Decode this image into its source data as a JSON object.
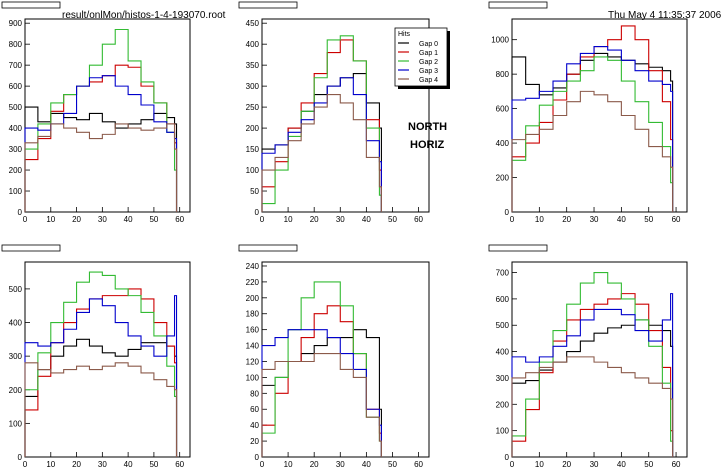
{
  "header": {
    "file": "result/onlMon/histos-1-4-193070.root",
    "timestamp": "Thu May  4 11:35:37 2006"
  },
  "annotations": {
    "north": "NORTH",
    "horiz": "HORIZ"
  },
  "legend": {
    "title": "Hits",
    "entries": [
      "Gap 0",
      "Gap 1",
      "Gap 2",
      "Gap 3",
      "Gap 4"
    ]
  },
  "colors": {
    "gap0": "#000000",
    "gap1": "#cc0000",
    "gap2": "#33bb33",
    "gap3": "#0000cc",
    "gap4": "#8b5a4a"
  },
  "chart_data": [
    {
      "type": "line",
      "panel": "top-left",
      "xticks": [
        0,
        10,
        20,
        30,
        40,
        50,
        60
      ],
      "ylim": [
        0,
        920
      ],
      "yticks": [
        0,
        100,
        200,
        300,
        400,
        500,
        600,
        700,
        800,
        900
      ],
      "series": [
        {
          "color": "#000000",
          "x": [
            0,
            5,
            10,
            15,
            20,
            25,
            30,
            35,
            40,
            45,
            50,
            55,
            58
          ],
          "y": [
            500,
            430,
            470,
            450,
            440,
            470,
            430,
            400,
            420,
            440,
            470,
            450,
            420
          ]
        },
        {
          "color": "#cc0000",
          "x": [
            0,
            5,
            10,
            15,
            20,
            25,
            30,
            35,
            40,
            45,
            50,
            55,
            58
          ],
          "y": [
            250,
            350,
            480,
            560,
            600,
            620,
            650,
            700,
            690,
            600,
            520,
            420,
            330
          ]
        },
        {
          "color": "#33bb33",
          "x": [
            0,
            5,
            10,
            15,
            20,
            25,
            30,
            35,
            40,
            45,
            50,
            55,
            58
          ],
          "y": [
            300,
            420,
            520,
            560,
            600,
            700,
            800,
            870,
            720,
            620,
            520,
            380,
            200
          ]
        },
        {
          "color": "#0000cc",
          "x": [
            0,
            5,
            10,
            15,
            20,
            25,
            30,
            35,
            40,
            45,
            50,
            55,
            58
          ],
          "y": [
            400,
            390,
            420,
            470,
            600,
            640,
            650,
            600,
            560,
            510,
            430,
            380,
            350
          ]
        },
        {
          "color": "#8b5a4a",
          "x": [
            0,
            5,
            10,
            15,
            20,
            25,
            30,
            35,
            40,
            45,
            50,
            55,
            58
          ],
          "y": [
            330,
            360,
            420,
            400,
            380,
            350,
            370,
            420,
            400,
            390,
            400,
            420,
            300
          ]
        }
      ]
    },
    {
      "type": "line",
      "panel": "top-middle",
      "xticks": [
        0,
        10,
        20,
        30,
        40,
        50,
        60
      ],
      "ylim": [
        0,
        460
      ],
      "yticks": [
        0,
        50,
        100,
        150,
        200,
        250,
        300,
        350,
        400,
        450
      ],
      "series": [
        {
          "color": "#000000",
          "x": [
            0,
            5,
            10,
            15,
            20,
            25,
            30,
            35,
            40,
            45
          ],
          "y": [
            150,
            160,
            200,
            240,
            280,
            300,
            320,
            330,
            260,
            200
          ]
        },
        {
          "color": "#cc0000",
          "x": [
            0,
            5,
            10,
            15,
            20,
            25,
            30,
            35,
            40,
            45
          ],
          "y": [
            60,
            120,
            200,
            260,
            330,
            380,
            410,
            360,
            220,
            100
          ]
        },
        {
          "color": "#33bb33",
          "x": [
            0,
            5,
            10,
            15,
            20,
            25,
            30,
            35,
            40,
            45
          ],
          "y": [
            20,
            100,
            180,
            240,
            320,
            410,
            420,
            360,
            200,
            40
          ]
        },
        {
          "color": "#0000cc",
          "x": [
            0,
            5,
            10,
            15,
            20,
            25,
            30,
            35,
            40,
            45
          ],
          "y": [
            140,
            160,
            190,
            220,
            260,
            300,
            320,
            280,
            170,
            120
          ]
        },
        {
          "color": "#8b5a4a",
          "x": [
            0,
            5,
            10,
            15,
            20,
            25,
            30,
            35,
            40,
            45
          ],
          "y": [
            100,
            130,
            170,
            210,
            250,
            280,
            260,
            220,
            130,
            60
          ]
        }
      ]
    },
    {
      "type": "line",
      "panel": "top-right",
      "xticks": [
        0,
        10,
        20,
        30,
        40,
        50,
        60
      ],
      "ylim": [
        0,
        1120
      ],
      "yticks": [
        0,
        200,
        400,
        600,
        800,
        1000
      ],
      "series": [
        {
          "color": "#000000",
          "x": [
            0,
            5,
            10,
            15,
            20,
            25,
            30,
            35,
            40,
            45,
            50,
            55,
            58
          ],
          "y": [
            900,
            740,
            680,
            720,
            800,
            880,
            920,
            900,
            880,
            860,
            840,
            820,
            760
          ]
        },
        {
          "color": "#cc0000",
          "x": [
            0,
            5,
            10,
            15,
            20,
            25,
            30,
            35,
            40,
            45,
            50,
            55,
            58
          ],
          "y": [
            320,
            400,
            520,
            650,
            800,
            900,
            960,
            1000,
            1080,
            1000,
            820,
            640,
            420
          ]
        },
        {
          "color": "#33bb33",
          "x": [
            0,
            5,
            10,
            15,
            20,
            25,
            30,
            35,
            40,
            45,
            50,
            55,
            58
          ],
          "y": [
            300,
            500,
            620,
            700,
            760,
            820,
            900,
            880,
            760,
            640,
            520,
            380,
            170
          ]
        },
        {
          "color": "#0000cc",
          "x": [
            0,
            5,
            10,
            15,
            20,
            25,
            30,
            35,
            40,
            45,
            50,
            55,
            58
          ],
          "y": [
            650,
            660,
            700,
            760,
            860,
            920,
            960,
            940,
            880,
            820,
            760,
            740,
            700
          ]
        },
        {
          "color": "#8b5a4a",
          "x": [
            0,
            5,
            10,
            15,
            20,
            25,
            30,
            35,
            40,
            45,
            50,
            55,
            58
          ],
          "y": [
            420,
            450,
            480,
            560,
            640,
            700,
            680,
            640,
            560,
            480,
            380,
            320,
            260
          ]
        }
      ]
    },
    {
      "type": "line",
      "panel": "bottom-left",
      "xticks": [
        0,
        10,
        20,
        30,
        40,
        50,
        60
      ],
      "ylim": [
        0,
        580
      ],
      "yticks": [
        0,
        100,
        200,
        300,
        400,
        500
      ],
      "series": [
        {
          "color": "#000000",
          "x": [
            0,
            5,
            10,
            15,
            20,
            25,
            30,
            35,
            40,
            45,
            50,
            55,
            58
          ],
          "y": [
            180,
            260,
            300,
            330,
            350,
            330,
            310,
            300,
            320,
            340,
            340,
            330,
            300
          ]
        },
        {
          "color": "#cc0000",
          "x": [
            0,
            5,
            10,
            15,
            20,
            25,
            30,
            35,
            40,
            45,
            50,
            55,
            58
          ],
          "y": [
            140,
            240,
            340,
            400,
            440,
            470,
            480,
            480,
            500,
            470,
            400,
            330,
            280
          ]
        },
        {
          "color": "#33bb33",
          "x": [
            0,
            5,
            10,
            15,
            20,
            25,
            30,
            35,
            40,
            45,
            50,
            55,
            58
          ],
          "y": [
            200,
            310,
            400,
            460,
            520,
            550,
            540,
            500,
            480,
            430,
            360,
            270,
            180
          ]
        },
        {
          "color": "#0000cc",
          "x": [
            0,
            5,
            10,
            15,
            20,
            25,
            30,
            35,
            40,
            45,
            50,
            55,
            58
          ],
          "y": [
            340,
            330,
            340,
            380,
            430,
            470,
            450,
            400,
            360,
            330,
            300,
            360,
            480
          ]
        },
        {
          "color": "#8b5a4a",
          "x": [
            0,
            5,
            10,
            15,
            20,
            25,
            30,
            35,
            40,
            45,
            50,
            55,
            58
          ],
          "y": [
            280,
            260,
            250,
            260,
            270,
            260,
            270,
            280,
            270,
            250,
            230,
            210,
            200
          ]
        }
      ]
    },
    {
      "type": "line",
      "panel": "bottom-middle",
      "xticks": [
        0,
        10,
        20,
        30,
        40,
        50,
        60
      ],
      "ylim": [
        0,
        245
      ],
      "yticks": [
        0,
        20,
        40,
        60,
        80,
        100,
        120,
        140,
        160,
        180,
        200,
        220,
        240
      ],
      "series": [
        {
          "color": "#000000",
          "x": [
            0,
            5,
            10,
            15,
            20,
            25,
            30,
            35,
            40,
            45
          ],
          "y": [
            90,
            100,
            120,
            130,
            140,
            150,
            150,
            160,
            150,
            60
          ]
        },
        {
          "color": "#cc0000",
          "x": [
            0,
            5,
            10,
            15,
            20,
            25,
            30,
            35,
            40,
            45
          ],
          "y": [
            40,
            80,
            120,
            150,
            180,
            190,
            170,
            130,
            60,
            30
          ]
        },
        {
          "color": "#33bb33",
          "x": [
            0,
            5,
            10,
            15,
            20,
            25,
            30,
            35,
            40,
            45
          ],
          "y": [
            30,
            100,
            160,
            200,
            220,
            220,
            190,
            130,
            50,
            20
          ]
        },
        {
          "color": "#0000cc",
          "x": [
            0,
            5,
            10,
            15,
            20,
            25,
            30,
            35,
            40,
            45
          ],
          "y": [
            140,
            150,
            160,
            160,
            160,
            150,
            130,
            110,
            60,
            40
          ]
        },
        {
          "color": "#8b5a4a",
          "x": [
            0,
            5,
            10,
            15,
            20,
            25,
            30,
            35,
            40,
            45
          ],
          "y": [
            110,
            120,
            120,
            120,
            130,
            130,
            110,
            100,
            50,
            20
          ]
        }
      ]
    },
    {
      "type": "line",
      "panel": "bottom-right",
      "xticks": [
        0,
        10,
        20,
        30,
        40,
        50,
        60
      ],
      "ylim": [
        0,
        740
      ],
      "yticks": [
        0,
        100,
        200,
        300,
        400,
        500,
        600,
        700
      ],
      "series": [
        {
          "color": "#000000",
          "x": [
            0,
            5,
            10,
            15,
            20,
            25,
            30,
            35,
            40,
            45,
            50,
            55,
            58
          ],
          "y": [
            280,
            290,
            330,
            360,
            400,
            440,
            470,
            490,
            500,
            520,
            500,
            480,
            420
          ]
        },
        {
          "color": "#cc0000",
          "x": [
            0,
            5,
            10,
            15,
            20,
            25,
            30,
            35,
            40,
            45,
            50,
            55,
            58
          ],
          "y": [
            60,
            180,
            320,
            440,
            520,
            560,
            580,
            600,
            620,
            580,
            480,
            340,
            100
          ]
        },
        {
          "color": "#33bb33",
          "x": [
            0,
            5,
            10,
            15,
            20,
            25,
            30,
            35,
            40,
            45,
            50,
            55,
            58
          ],
          "y": [
            80,
            220,
            360,
            480,
            580,
            660,
            700,
            660,
            600,
            520,
            420,
            280,
            60
          ]
        },
        {
          "color": "#0000cc",
          "x": [
            0,
            5,
            10,
            15,
            20,
            25,
            30,
            35,
            40,
            45,
            50,
            55,
            58
          ],
          "y": [
            380,
            360,
            380,
            420,
            460,
            520,
            560,
            560,
            540,
            480,
            440,
            520,
            620
          ]
        },
        {
          "color": "#8b5a4a",
          "x": [
            0,
            5,
            10,
            15,
            20,
            25,
            30,
            35,
            40,
            45,
            50,
            55,
            58
          ],
          "y": [
            300,
            320,
            340,
            360,
            380,
            380,
            360,
            340,
            320,
            300,
            280,
            260,
            220
          ]
        }
      ]
    }
  ]
}
